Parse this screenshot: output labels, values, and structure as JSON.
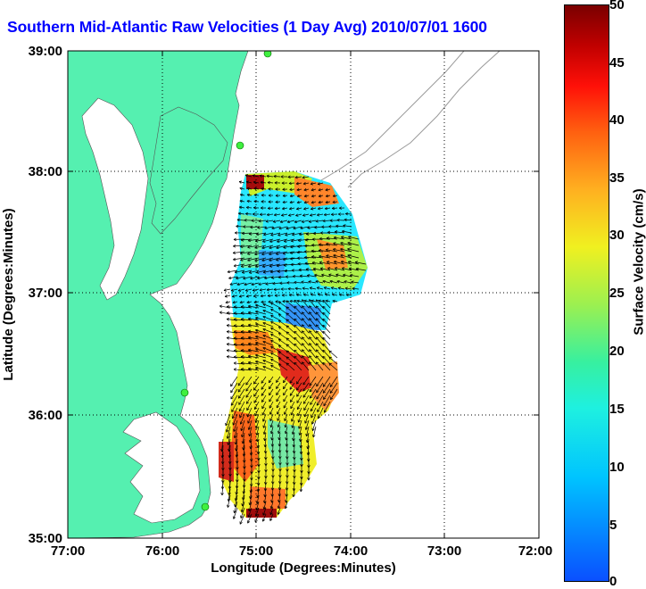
{
  "title": "Southern Mid-Atlantic Raw Velocities (1 Day Avg) 2010/07/01 1600",
  "x_axis": {
    "label": "Longitude (Degrees:Minutes)",
    "ticks": [
      "77:00",
      "76:00",
      "75:00",
      "74:00",
      "73:00",
      "72:00"
    ]
  },
  "y_axis": {
    "label": "Latitude (Degrees:Minutes)",
    "ticks": [
      "39:00",
      "38:00",
      "37:00",
      "36:00",
      "35:00"
    ]
  },
  "colorbar": {
    "label": "Surface Velocity (cm/s)",
    "ticks": [
      "50",
      "45",
      "40",
      "35",
      "30",
      "25",
      "20",
      "15",
      "10",
      "5",
      "0"
    ],
    "range": [
      0,
      50
    ]
  },
  "colors": {
    "title": "#0000ff",
    "land": "#55f0b0",
    "water": "#ffffff"
  }
}
